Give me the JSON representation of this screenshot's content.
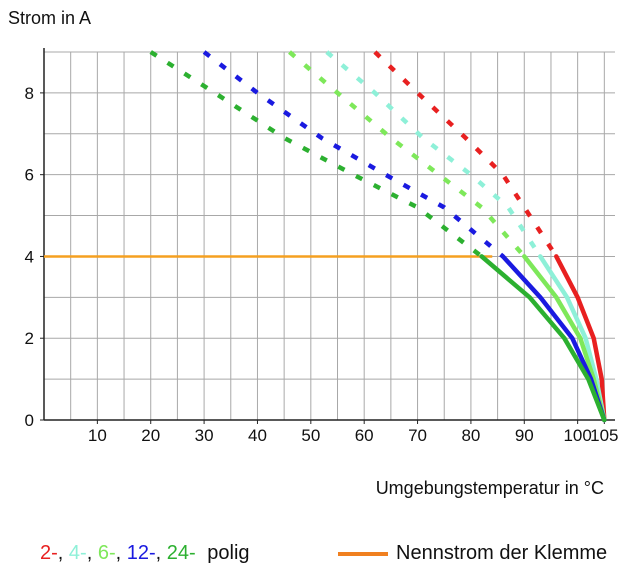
{
  "chart_data": {
    "type": "line",
    "ylabel": "Strom in A",
    "xlabel": "Umgebungstemperatur in °C",
    "xlim": [
      0,
      107
    ],
    "ylim": [
      0,
      9
    ],
    "x_ticks": [
      10,
      20,
      30,
      40,
      50,
      60,
      70,
      80,
      90,
      100,
      105
    ],
    "y_ticks": [
      0,
      2,
      4,
      6,
      8
    ],
    "grid": true,
    "reference_line": {
      "name": "Nennstrom der Klemme",
      "y": 4,
      "x_range": [
        0,
        84
      ],
      "color": "#f5a020"
    },
    "series": [
      {
        "pole": "2-",
        "color": "#e82020",
        "dashed": [
          [
            62,
            9
          ],
          [
            70,
            8
          ],
          [
            79,
            6.9
          ],
          [
            86,
            6
          ],
          [
            90,
            5.2
          ],
          [
            96,
            4
          ]
        ],
        "solid": [
          [
            96,
            4
          ],
          [
            100,
            3
          ],
          [
            103,
            2
          ],
          [
            104.5,
            1
          ],
          [
            105,
            0
          ]
        ]
      },
      {
        "pole": "4-",
        "color": "#8ef0d8",
        "dashed": [
          [
            53,
            9
          ],
          [
            62,
            8
          ],
          [
            71,
            6.9
          ],
          [
            80,
            6
          ],
          [
            87,
            5.2
          ],
          [
            93,
            4
          ]
        ],
        "solid": [
          [
            93,
            4
          ],
          [
            98,
            3
          ],
          [
            101.5,
            2
          ],
          [
            103.5,
            1
          ],
          [
            105,
            0
          ]
        ]
      },
      {
        "pole": "6-",
        "color": "#7ee85a",
        "dashed": [
          [
            46,
            9
          ],
          [
            55,
            8
          ],
          [
            65,
            6.9
          ],
          [
            74,
            6
          ],
          [
            82,
            5.2
          ],
          [
            90,
            4
          ]
        ],
        "solid": [
          [
            90,
            4
          ],
          [
            96,
            3
          ],
          [
            100.5,
            2
          ],
          [
            103,
            1
          ],
          [
            105,
            0
          ]
        ]
      },
      {
        "pole": "12-",
        "color": "#1a1ae0",
        "dashed": [
          [
            30,
            9
          ],
          [
            40,
            8
          ],
          [
            52,
            6.9
          ],
          [
            64,
            6
          ],
          [
            75,
            5.2
          ],
          [
            86,
            4
          ]
        ],
        "solid": [
          [
            86,
            4
          ],
          [
            93,
            3
          ],
          [
            99,
            2
          ],
          [
            102.5,
            1
          ],
          [
            105,
            0
          ]
        ]
      },
      {
        "pole": "24-",
        "color": "#2cb030",
        "dashed": [
          [
            20,
            9
          ],
          [
            32,
            8
          ],
          [
            45,
            6.9
          ],
          [
            58,
            6
          ],
          [
            70,
            5.2
          ],
          [
            82,
            4
          ]
        ],
        "solid": [
          [
            82,
            4
          ],
          [
            91,
            3
          ],
          [
            97.5,
            2
          ],
          [
            102,
            1
          ],
          [
            105,
            0
          ]
        ]
      }
    ]
  },
  "legend": {
    "poles": [
      {
        "label": "2-",
        "color": "#e82020"
      },
      {
        "label": "4-",
        "color": "#8ef0d8"
      },
      {
        "label": "6-",
        "color": "#7ee85a"
      },
      {
        "label": "12-",
        "color": "#1a1ae0"
      },
      {
        "label": "24-",
        "color": "#2cb030"
      }
    ],
    "suffix": "polig",
    "reference_label": "Nennstrom der Klemme",
    "reference_color": "#f08020"
  }
}
